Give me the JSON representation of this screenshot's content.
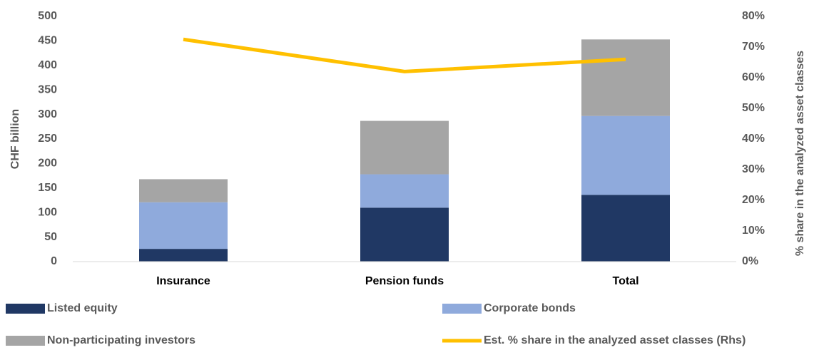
{
  "chart_data": {
    "type": "bar",
    "stacked": true,
    "ylabel": "CHF billion",
    "y2label": "% share in the analyzed asset classes",
    "categories": [
      "Insurance",
      "Pension funds",
      "Total"
    ],
    "series": [
      {
        "name": "Listed equity",
        "color": "#203864",
        "values": [
          26,
          110,
          136
        ]
      },
      {
        "name": "Corporate bonds",
        "color": "#8faadc",
        "values": [
          95,
          68,
          161
        ]
      },
      {
        "name": "Non-participating investors",
        "color": "#a5a5a5",
        "values": [
          47,
          109,
          156
        ]
      },
      {
        "name": "Est. % share in the analyzed asset classes (Rhs)",
        "color": "#ffc000",
        "type": "line",
        "axis": "y2",
        "values": [
          72.5,
          62,
          66
        ]
      }
    ],
    "ylim": [
      0,
      500
    ],
    "yticks": [
      0,
      50,
      100,
      150,
      200,
      250,
      300,
      350,
      400,
      450,
      500
    ],
    "y2lim": [
      0,
      80
    ],
    "y2ticks": [
      {
        "value": 0,
        "label": "0%"
      },
      {
        "value": 10,
        "label": "10%"
      },
      {
        "value": 20,
        "label": "20%"
      },
      {
        "value": 30,
        "label": "30%"
      },
      {
        "value": 40,
        "label": "40%"
      },
      {
        "value": 50,
        "label": "50%"
      },
      {
        "value": 60,
        "label": "60%"
      },
      {
        "value": 70,
        "label": "70%"
      },
      {
        "value": 80,
        "label": "80%"
      }
    ],
    "grid": false
  }
}
